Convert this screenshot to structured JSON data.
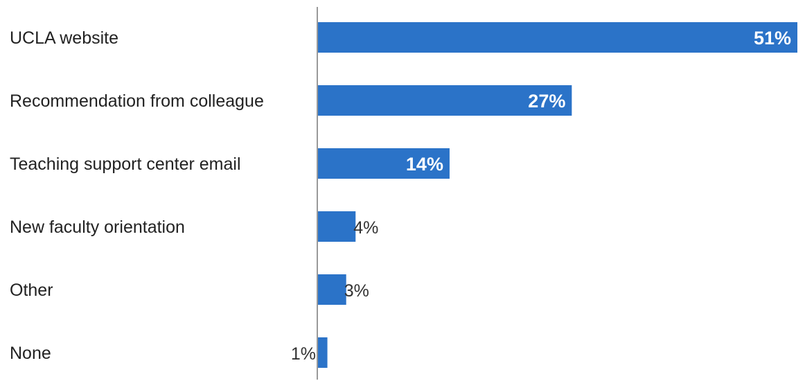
{
  "chart_data": {
    "type": "bar",
    "orientation": "horizontal",
    "categories": [
      "UCLA website",
      "Recommendation from colleague",
      "Teaching support center email",
      "New faculty orientation",
      "Other",
      "None"
    ],
    "values": [
      51,
      27,
      14,
      4,
      3,
      1
    ],
    "value_labels": [
      "51%",
      "27%",
      "14%",
      "4%",
      "3%",
      "1%"
    ],
    "unit": "%",
    "xlim": [
      0,
      51
    ],
    "title": "",
    "xlabel": "",
    "ylabel": "",
    "grid": false,
    "legend": false,
    "bar_color": "#2b73c8",
    "axis_color": "#999999"
  }
}
